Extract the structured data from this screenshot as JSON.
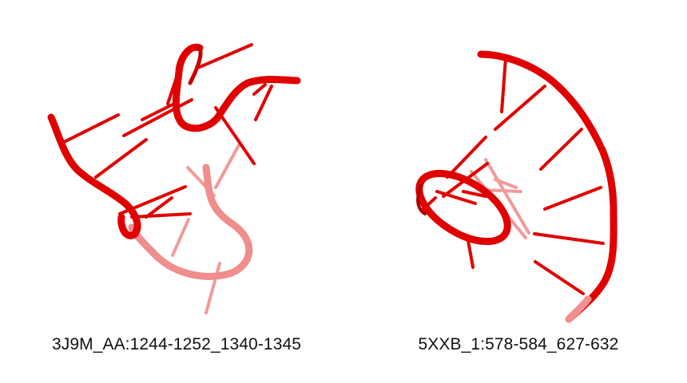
{
  "colors": {
    "backbone": "#e00000",
    "base": "#e00000",
    "faded": "#f08080",
    "label": "#111111"
  },
  "panels": [
    {
      "label": "3J9M_AA:1244-1252_1340-1345"
    },
    {
      "label": "5XXB_1:578-584_627-632"
    }
  ]
}
